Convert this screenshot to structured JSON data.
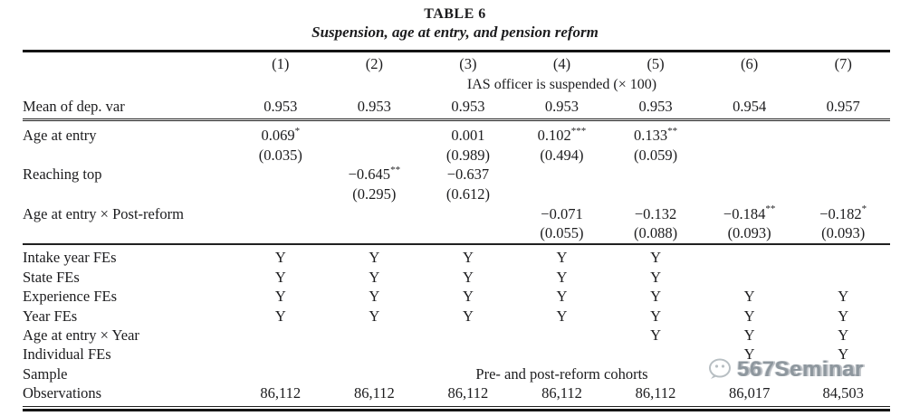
{
  "page": {
    "background": "#ffffff",
    "text_color": "#1c1c1e",
    "rule_color": "#202020"
  },
  "title": "TABLE 6",
  "subtitle": "Suspension, age at entry, and pension reform",
  "table": {
    "columns": [
      "(1)",
      "(2)",
      "(3)",
      "(4)",
      "(5)",
      "(6)",
      "(7)"
    ],
    "dep_var_header": "IAS officer is suspended (× 100)",
    "mean_row": {
      "label": "Mean of dep. var",
      "cells": [
        "0.953",
        "0.953",
        "0.953",
        "0.953",
        "0.953",
        "0.954",
        "0.957"
      ]
    },
    "coef_rows": [
      {
        "label": "Age at entry",
        "cells": [
          "0.069*",
          "",
          "0.001",
          "0.102***",
          "0.133**",
          "",
          ""
        ]
      },
      {
        "label": "",
        "cells": [
          "(0.035)",
          "",
          "(0.989)",
          "(0.494)",
          "(0.059)",
          "",
          ""
        ]
      },
      {
        "label": "Reaching top",
        "cells": [
          "",
          "−0.645**",
          "−0.637",
          "",
          "",
          "",
          ""
        ]
      },
      {
        "label": "",
        "cells": [
          "",
          "(0.295)",
          "(0.612)",
          "",
          "",
          "",
          ""
        ]
      },
      {
        "label": "Age at entry × Post-reform",
        "cells": [
          "",
          "",
          "",
          "−0.071",
          "−0.132",
          "−0.184**",
          "−0.182*"
        ]
      },
      {
        "label": "",
        "cells": [
          "",
          "",
          "",
          "(0.055)",
          "(0.088)",
          "(0.093)",
          "(0.093)"
        ]
      }
    ],
    "fe_rows": [
      {
        "label": "Intake year FEs",
        "cells": [
          "Y",
          "Y",
          "Y",
          "Y",
          "Y",
          "",
          ""
        ]
      },
      {
        "label": "State FEs",
        "cells": [
          "Y",
          "Y",
          "Y",
          "Y",
          "Y",
          "",
          ""
        ]
      },
      {
        "label": "Experience FEs",
        "cells": [
          "Y",
          "Y",
          "Y",
          "Y",
          "Y",
          "Y",
          "Y"
        ]
      },
      {
        "label": "Year FEs",
        "cells": [
          "Y",
          "Y",
          "Y",
          "Y",
          "Y",
          "Y",
          "Y"
        ]
      },
      {
        "label": "Age at entry × Year",
        "cells": [
          "",
          "",
          "",
          "",
          "Y",
          "Y",
          "Y"
        ]
      },
      {
        "label": "Individual FEs",
        "cells": [
          "",
          "",
          "",
          "",
          "",
          "Y",
          "Y"
        ]
      },
      {
        "label": "Sample",
        "span": "Pre- and post-reform cohorts"
      },
      {
        "label": "Observations",
        "cells": [
          "86,112",
          "86,112",
          "86,112",
          "86,112",
          "86,112",
          "86,017",
          "84,503"
        ]
      }
    ]
  },
  "watermark": {
    "icon": "chat-bubble-logo",
    "text": "567Seminar"
  }
}
